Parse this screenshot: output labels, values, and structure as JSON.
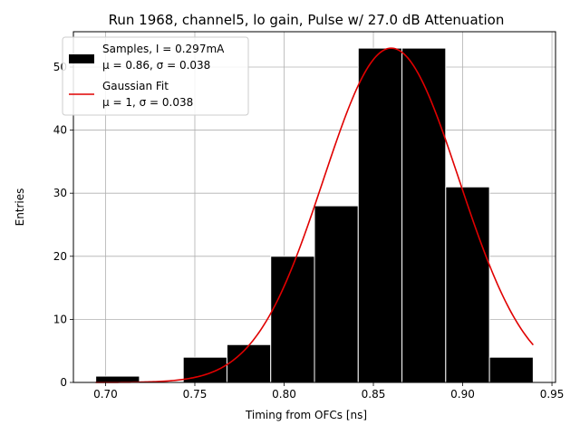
{
  "chart_data": {
    "type": "bar",
    "title": "Run 1968, channel5, lo gain, Pulse w/ 27.0 dB Attenuation",
    "xlabel": "Timing from OFCs [ns]",
    "ylabel": "Entries",
    "xlim": [
      0.682,
      0.952
    ],
    "ylim": [
      0,
      55.6
    ],
    "grid": true,
    "legend_position": "top-left",
    "xticks": [
      {
        "value": 0.7,
        "label": "0.70"
      },
      {
        "value": 0.75,
        "label": "0.75"
      },
      {
        "value": 0.8,
        "label": "0.80"
      },
      {
        "value": 0.85,
        "label": "0.85"
      },
      {
        "value": 0.9,
        "label": "0.90"
      },
      {
        "value": 0.95,
        "label": "0.95"
      }
    ],
    "yticks": [
      {
        "value": 0,
        "label": "0"
      },
      {
        "value": 10,
        "label": "10"
      },
      {
        "value": 20,
        "label": "20"
      },
      {
        "value": 30,
        "label": "30"
      },
      {
        "value": 40,
        "label": "40"
      },
      {
        "value": 50,
        "label": "50"
      }
    ],
    "histogram": {
      "color": "#000000",
      "edge_color": "#ffffff",
      "bins": [
        {
          "start": 0.6945,
          "end": 0.719,
          "count": 1
        },
        {
          "start": 0.719,
          "end": 0.7435,
          "count": 0
        },
        {
          "start": 0.7435,
          "end": 0.768,
          "count": 4
        },
        {
          "start": 0.768,
          "end": 0.7925,
          "count": 6
        },
        {
          "start": 0.7925,
          "end": 0.817,
          "count": 20
        },
        {
          "start": 0.817,
          "end": 0.8415,
          "count": 28
        },
        {
          "start": 0.8415,
          "end": 0.866,
          "count": 53
        },
        {
          "start": 0.866,
          "end": 0.8905,
          "count": 53
        },
        {
          "start": 0.8905,
          "end": 0.915,
          "count": 31
        },
        {
          "start": 0.915,
          "end": 0.9395,
          "count": 4
        }
      ]
    },
    "fit": {
      "color": "#e00000",
      "x_range": [
        0.6945,
        0.9395
      ],
      "amplitude": 53,
      "mean": 0.86,
      "sigma": 0.038
    },
    "legend": [
      {
        "kind": "bar",
        "color": "#000000",
        "line1": "Samples, I = 0.297mA",
        "line2": "μ = 0.86, σ = 0.038"
      },
      {
        "kind": "line",
        "color": "#e00000",
        "line1": "Gaussian Fit",
        "line2": "μ = 1, σ = 0.038"
      }
    ]
  }
}
